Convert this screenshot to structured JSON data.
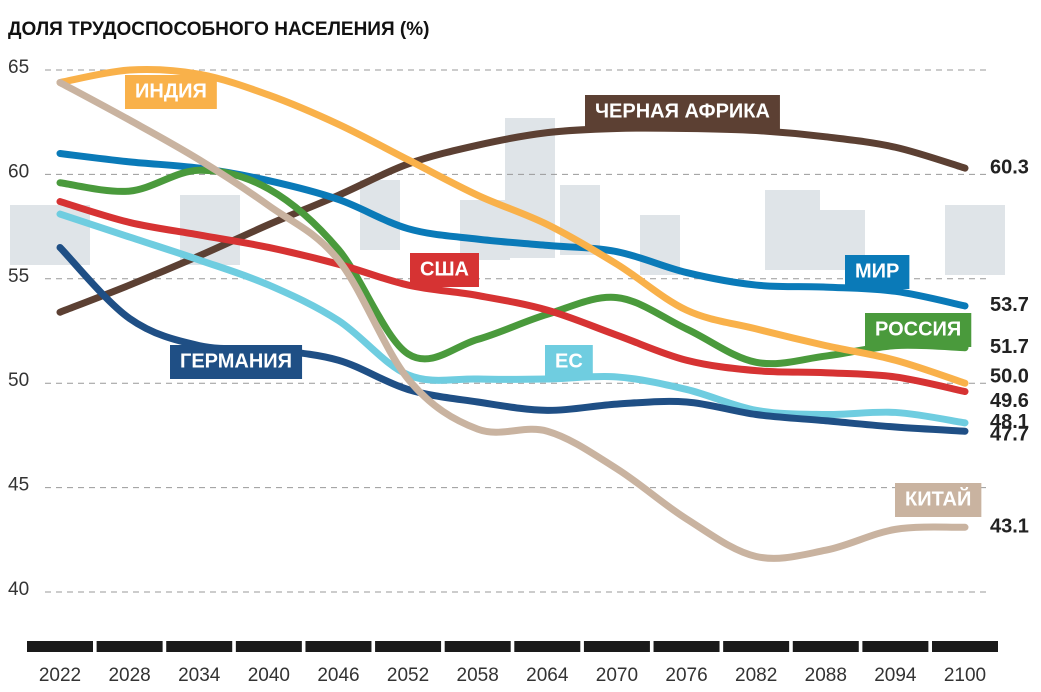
{
  "chart_data": {
    "type": "line",
    "title": "ДОЛЯ ТРУДОСПОСОБНОГО НАСЕЛЕНИЯ (%)",
    "x": [
      2022,
      2028,
      2034,
      2040,
      2046,
      2052,
      2058,
      2064,
      2070,
      2076,
      2082,
      2088,
      2094,
      2100
    ],
    "xlim": [
      2022,
      2100
    ],
    "xticks": [
      2022,
      2028,
      2034,
      2040,
      2046,
      2052,
      2058,
      2064,
      2070,
      2076,
      2082,
      2088,
      2094,
      2100
    ],
    "ylim": [
      38,
      65.5
    ],
    "yticks": [
      40,
      45,
      50,
      55,
      60,
      65
    ],
    "grid": true,
    "series": [
      {
        "name": "ЧЕРНАЯ АФРИКА",
        "color": "#5c4033",
        "values": [
          53.4,
          54.7,
          56.1,
          57.6,
          59.0,
          60.5,
          61.4,
          62.0,
          62.2,
          62.2,
          62.1,
          61.8,
          61.3,
          60.3
        ],
        "value_labels": [
          null,
          null,
          null,
          null,
          null,
          null,
          null,
          null,
          null,
          null,
          null,
          null,
          null,
          "60.3"
        ]
      },
      {
        "name": "МИР",
        "color": "#0a7ab8",
        "values": [
          61.0,
          60.6,
          60.3,
          59.7,
          58.8,
          57.4,
          56.9,
          56.6,
          56.3,
          55.3,
          54.7,
          54.6,
          54.4,
          53.7
        ],
        "value_labels": [
          null,
          null,
          null,
          null,
          null,
          null,
          null,
          null,
          null,
          null,
          null,
          null,
          null,
          "53.7"
        ]
      },
      {
        "name": "РОССИЯ",
        "color": "#4a9a3c",
        "values": [
          59.6,
          59.2,
          60.2,
          59.3,
          56.4,
          51.4,
          52.1,
          53.3,
          54.1,
          52.6,
          51.0,
          51.3,
          51.8,
          51.7
        ],
        "value_labels": [
          null,
          null,
          null,
          null,
          null,
          null,
          null,
          null,
          null,
          null,
          null,
          null,
          null,
          "51.7"
        ]
      },
      {
        "name": "ИНДИЯ",
        "color": "#f9b14a",
        "values": [
          64.4,
          65.0,
          64.8,
          63.8,
          62.4,
          60.7,
          59.0,
          57.6,
          55.7,
          53.5,
          52.6,
          51.8,
          51.1,
          50.0
        ],
        "value_labels": [
          null,
          null,
          null,
          null,
          null,
          null,
          null,
          null,
          null,
          null,
          null,
          null,
          null,
          "50.0"
        ]
      },
      {
        "name": "США",
        "color": "#d63333",
        "values": [
          58.7,
          57.7,
          57.1,
          56.5,
          55.7,
          54.7,
          54.2,
          53.5,
          52.3,
          51.1,
          50.6,
          50.5,
          50.3,
          49.6
        ],
        "value_labels": [
          null,
          null,
          null,
          null,
          null,
          null,
          null,
          null,
          null,
          null,
          null,
          null,
          null,
          "49.6"
        ]
      },
      {
        "name": "ЕС",
        "color": "#6fcde0",
        "values": [
          58.1,
          57.0,
          55.9,
          54.7,
          53.0,
          50.4,
          50.2,
          50.2,
          50.3,
          49.7,
          48.7,
          48.5,
          48.6,
          48.1
        ],
        "value_labels": [
          null,
          null,
          null,
          null,
          null,
          null,
          null,
          null,
          null,
          null,
          null,
          null,
          null,
          "48.1"
        ]
      },
      {
        "name": "ГЕРМАНИЯ",
        "color": "#1f4f85",
        "values": [
          56.5,
          53.1,
          51.8,
          51.6,
          51.1,
          49.7,
          49.1,
          48.7,
          49.0,
          49.1,
          48.5,
          48.2,
          47.9,
          47.7
        ],
        "value_labels": [
          null,
          null,
          null,
          null,
          null,
          null,
          null,
          null,
          null,
          null,
          null,
          null,
          null,
          "47.7"
        ]
      },
      {
        "name": "КИТАЙ",
        "color": "#c9b3a0",
        "values": [
          64.4,
          62.6,
          60.7,
          58.5,
          55.9,
          50.2,
          47.8,
          47.7,
          45.9,
          43.5,
          41.7,
          42.0,
          43.0,
          43.1
        ],
        "value_labels": [
          null,
          null,
          null,
          null,
          null,
          null,
          null,
          null,
          null,
          null,
          null,
          null,
          null,
          "43.1"
        ]
      }
    ]
  }
}
